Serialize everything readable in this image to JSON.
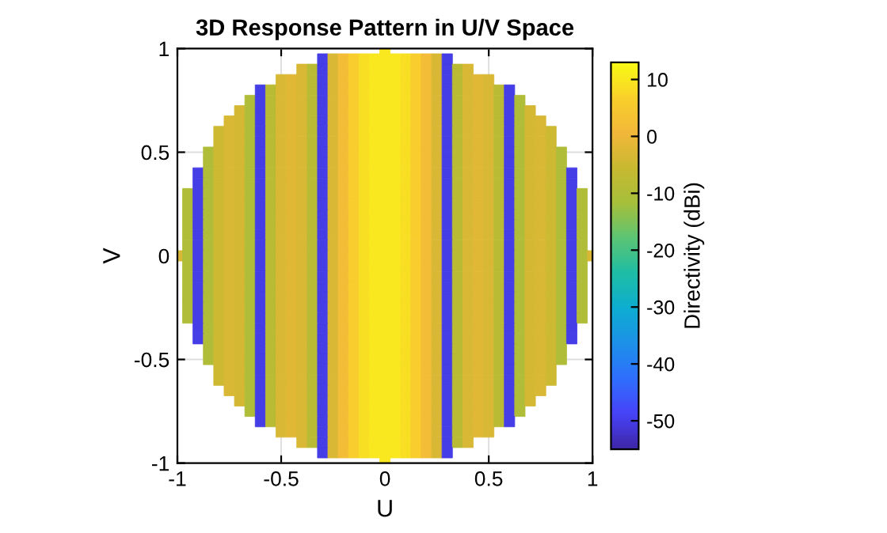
{
  "chart_data": {
    "type": "heatmap",
    "title": "3D Response Pattern in U/V Space",
    "xlabel": "U",
    "ylabel": "V",
    "clabel": "Directivity (dBi)",
    "xlim": [
      -1,
      1
    ],
    "ylim": [
      -1,
      1
    ],
    "xticks": [
      -1,
      -0.5,
      0,
      0.5,
      1
    ],
    "yticks": [
      -1,
      -0.5,
      0,
      0.5,
      1
    ],
    "clim": [
      -55,
      13
    ],
    "cticks": [
      -50,
      -40,
      -30,
      -20,
      -10,
      0,
      10
    ],
    "grid": true,
    "x": [
      -1,
      -0.95,
      -0.9,
      -0.85,
      -0.8,
      -0.75,
      -0.7,
      -0.65,
      -0.6,
      -0.55,
      -0.5,
      -0.45,
      -0.4,
      -0.35,
      -0.3,
      -0.25,
      -0.2,
      -0.15,
      -0.1,
      -0.05,
      0,
      0.05,
      0.1,
      0.15,
      0.2,
      0.25,
      0.3,
      0.35,
      0.4,
      0.45,
      0.5,
      0.55,
      0.6,
      0.65,
      0.7,
      0.75,
      0.8,
      0.85,
      0.9,
      0.95,
      1
    ],
    "y": [
      1,
      0.95,
      0.9,
      0.85,
      0.8,
      0.75,
      0.7,
      0.65,
      0.6,
      0.55,
      0.5,
      0.45,
      0.4,
      0.35,
      0.3,
      0.25,
      0.2,
      0.15,
      0.1,
      0.05,
      0,
      -0.05,
      -0.1,
      -0.15,
      -0.2,
      -0.25,
      -0.3,
      -0.35,
      -0.4,
      -0.45,
      -0.5,
      -0.55,
      -0.6,
      -0.65,
      -0.7,
      -0.75,
      -0.8,
      -0.85,
      -0.9,
      -0.95,
      -1
    ],
    "cells": [
      [
        null,
        null,
        null,
        null,
        null,
        null,
        null,
        null,
        null,
        null,
        null,
        null,
        null,
        null,
        null,
        null,
        null,
        null,
        null,
        null,
        10,
        null,
        null,
        null,
        null,
        null,
        null,
        null,
        null,
        null,
        null,
        null,
        null,
        null,
        null,
        null,
        null,
        null,
        null,
        null,
        null
      ],
      [
        null,
        null,
        null,
        null,
        null,
        null,
        null,
        null,
        null,
        null,
        null,
        null,
        null,
        null,
        -50,
        -3,
        2,
        6,
        9,
        10,
        10,
        10,
        9,
        6,
        2,
        -3,
        -50,
        null,
        null,
        null,
        null,
        null,
        null,
        null,
        null,
        null,
        null,
        null,
        null,
        null,
        null
      ],
      [
        null,
        null,
        null,
        null,
        null,
        null,
        null,
        null,
        null,
        null,
        null,
        null,
        -3,
        -8,
        -50,
        -3,
        2,
        6,
        9,
        10,
        10,
        10,
        9,
        6,
        2,
        -3,
        -50,
        -8,
        -3,
        null,
        null,
        null,
        null,
        null,
        null,
        null,
        null,
        null,
        null,
        null,
        null
      ],
      [
        null,
        null,
        null,
        null,
        null,
        null,
        null,
        null,
        null,
        null,
        -3,
        -2,
        -3,
        -8,
        -50,
        -3,
        2,
        6,
        9,
        10,
        10,
        10,
        9,
        6,
        2,
        -3,
        -50,
        -8,
        -3,
        -2,
        -3,
        null,
        null,
        null,
        null,
        null,
        null,
        null,
        null,
        null,
        null
      ],
      [
        null,
        null,
        null,
        null,
        null,
        null,
        null,
        null,
        -50,
        -8,
        -3,
        -2,
        -3,
        -8,
        -50,
        -3,
        2,
        6,
        9,
        10,
        10,
        10,
        9,
        6,
        2,
        -3,
        -50,
        -8,
        -3,
        -2,
        -3,
        -8,
        -50,
        null,
        null,
        null,
        null,
        null,
        null,
        null,
        null
      ],
      [
        null,
        null,
        null,
        null,
        null,
        null,
        null,
        -10,
        -50,
        -8,
        -3,
        -2,
        -3,
        -8,
        -50,
        -3,
        2,
        6,
        9,
        10,
        10,
        10,
        9,
        6,
        2,
        -3,
        -50,
        -8,
        -3,
        -2,
        -3,
        -8,
        -50,
        -10,
        null,
        null,
        null,
        null,
        null,
        null,
        null
      ],
      [
        null,
        null,
        null,
        null,
        null,
        null,
        -4,
        -10,
        -50,
        -8,
        -3,
        -2,
        -3,
        -8,
        -50,
        -3,
        2,
        6,
        9,
        10,
        10,
        10,
        9,
        6,
        2,
        -3,
        -50,
        -8,
        -3,
        -2,
        -3,
        -8,
        -50,
        -10,
        -4,
        null,
        null,
        null,
        null,
        null,
        null
      ],
      [
        null,
        null,
        null,
        null,
        null,
        -3,
        -4,
        -10,
        -50,
        -8,
        -3,
        -2,
        -3,
        -8,
        -50,
        -3,
        2,
        6,
        9,
        10,
        10,
        10,
        9,
        6,
        2,
        -3,
        -50,
        -8,
        -3,
        -2,
        -3,
        -8,
        -50,
        -10,
        -4,
        -3,
        null,
        null,
        null,
        null,
        null
      ],
      [
        null,
        null,
        null,
        null,
        -5,
        -3,
        -4,
        -10,
        -50,
        -8,
        -3,
        -2,
        -3,
        -8,
        -50,
        -3,
        2,
        6,
        9,
        10,
        10,
        10,
        9,
        6,
        2,
        -3,
        -50,
        -8,
        -3,
        -2,
        -3,
        -8,
        -50,
        -10,
        -4,
        -3,
        -5,
        null,
        null,
        null,
        null
      ],
      [
        null,
        null,
        null,
        null,
        -5,
        -3,
        -4,
        -10,
        -50,
        -8,
        -3,
        -2,
        -3,
        -8,
        -50,
        -3,
        2,
        6,
        9,
        10,
        10,
        10,
        9,
        6,
        2,
        -3,
        -50,
        -8,
        -3,
        -2,
        -3,
        -8,
        -50,
        -10,
        -4,
        -3,
        -5,
        null,
        null,
        null,
        null
      ],
      [
        null,
        null,
        null,
        -10,
        -5,
        -3,
        -4,
        -10,
        -50,
        -8,
        -3,
        -2,
        -3,
        -8,
        -50,
        -3,
        2,
        6,
        9,
        10,
        10,
        10,
        9,
        6,
        2,
        -3,
        -50,
        -8,
        -3,
        -2,
        -3,
        -8,
        -50,
        -10,
        -4,
        -3,
        -5,
        -10,
        null,
        null,
        null
      ],
      [
        null,
        null,
        null,
        -10,
        -5,
        -3,
        -4,
        -10,
        -50,
        -8,
        -3,
        -2,
        -3,
        -8,
        -50,
        -3,
        2,
        6,
        9,
        10,
        10,
        10,
        9,
        6,
        2,
        -3,
        -50,
        -8,
        -3,
        -2,
        -3,
        -8,
        -50,
        -10,
        -4,
        -3,
        -5,
        -10,
        null,
        null,
        null
      ],
      [
        null,
        null,
        -50,
        -10,
        -5,
        -3,
        -4,
        -10,
        -50,
        -8,
        -3,
        -2,
        -3,
        -8,
        -50,
        -3,
        2,
        6,
        9,
        10,
        10,
        10,
        9,
        6,
        2,
        -3,
        -50,
        -8,
        -3,
        -2,
        -3,
        -8,
        -50,
        -10,
        -4,
        -3,
        -5,
        -10,
        -50,
        null,
        null
      ],
      [
        null,
        null,
        -50,
        -10,
        -5,
        -3,
        -4,
        -10,
        -50,
        -8,
        -3,
        -2,
        -3,
        -8,
        -50,
        -3,
        2,
        6,
        9,
        10,
        10,
        10,
        9,
        6,
        2,
        -3,
        -50,
        -8,
        -3,
        -2,
        -3,
        -8,
        -50,
        -10,
        -4,
        -3,
        -5,
        -10,
        -50,
        null,
        null
      ],
      [
        null,
        -10,
        -50,
        -10,
        -5,
        -3,
        -4,
        -10,
        -50,
        -8,
        -3,
        -2,
        -3,
        -8,
        -50,
        -3,
        2,
        6,
        9,
        10,
        10,
        10,
        9,
        6,
        2,
        -3,
        -50,
        -8,
        -3,
        -2,
        -3,
        -8,
        -50,
        -10,
        -4,
        -3,
        -5,
        -10,
        -50,
        -10,
        null
      ],
      [
        null,
        -10,
        -50,
        -10,
        -5,
        -3,
        -4,
        -10,
        -50,
        -8,
        -3,
        -2,
        -3,
        -8,
        -50,
        -3,
        2,
        6,
        9,
        10,
        10,
        10,
        9,
        6,
        2,
        -3,
        -50,
        -8,
        -3,
        -2,
        -3,
        -8,
        -50,
        -10,
        -4,
        -3,
        -5,
        -10,
        -50,
        -10,
        null
      ],
      [
        null,
        -10,
        -50,
        -10,
        -5,
        -3,
        -4,
        -10,
        -50,
        -8,
        -3,
        -2,
        -3,
        -8,
        -50,
        -3,
        2,
        6,
        9,
        10,
        10,
        10,
        9,
        6,
        2,
        -3,
        -50,
        -8,
        -3,
        -2,
        -3,
        -8,
        -50,
        -10,
        -4,
        -3,
        -5,
        -10,
        -50,
        -10,
        null
      ],
      [
        null,
        -10,
        -50,
        -10,
        -5,
        -3,
        -4,
        -10,
        -50,
        -8,
        -3,
        -2,
        -3,
        -8,
        -50,
        -3,
        2,
        6,
        9,
        10,
        10,
        10,
        9,
        6,
        2,
        -3,
        -50,
        -8,
        -3,
        -2,
        -3,
        -8,
        -50,
        -10,
        -4,
        -3,
        -5,
        -10,
        -50,
        -10,
        null
      ],
      [
        null,
        -10,
        -50,
        -10,
        -5,
        -3,
        -4,
        -10,
        -50,
        -8,
        -3,
        -2,
        -3,
        -8,
        -50,
        -3,
        2,
        6,
        9,
        10,
        10,
        10,
        9,
        6,
        2,
        -3,
        -50,
        -8,
        -3,
        -2,
        -3,
        -8,
        -50,
        -10,
        -4,
        -3,
        -5,
        -10,
        -50,
        -10,
        null
      ],
      [
        null,
        -10,
        -50,
        -10,
        -5,
        -3,
        -4,
        -10,
        -50,
        -8,
        -3,
        -2,
        -3,
        -8,
        -50,
        -3,
        2,
        6,
        9,
        10,
        10,
        10,
        9,
        6,
        2,
        -3,
        -50,
        -8,
        -3,
        -2,
        -3,
        -8,
        -50,
        -10,
        -4,
        -3,
        -5,
        -10,
        -50,
        -10,
        null
      ],
      [
        -3,
        -10,
        -50,
        -10,
        -5,
        -3,
        -4,
        -10,
        -50,
        -8,
        -3,
        -2,
        -3,
        -8,
        -50,
        -3,
        2,
        6,
        9,
        10,
        10,
        10,
        9,
        6,
        2,
        -3,
        -50,
        -8,
        -3,
        -2,
        -3,
        -8,
        -50,
        -10,
        -4,
        -3,
        -5,
        -10,
        -50,
        -10,
        -3
      ],
      [
        null,
        -10,
        -50,
        -10,
        -5,
        -3,
        -4,
        -10,
        -50,
        -8,
        -3,
        -2,
        -3,
        -8,
        -50,
        -3,
        2,
        6,
        9,
        10,
        10,
        10,
        9,
        6,
        2,
        -3,
        -50,
        -8,
        -3,
        -2,
        -3,
        -8,
        -50,
        -10,
        -4,
        -3,
        -5,
        -10,
        -50,
        -10,
        null
      ],
      [
        null,
        -10,
        -50,
        -10,
        -5,
        -3,
        -4,
        -10,
        -50,
        -8,
        -3,
        -2,
        -3,
        -8,
        -50,
        -3,
        2,
        6,
        9,
        10,
        10,
        10,
        9,
        6,
        2,
        -3,
        -50,
        -8,
        -3,
        -2,
        -3,
        -8,
        -50,
        -10,
        -4,
        -3,
        -5,
        -10,
        -50,
        -10,
        null
      ],
      [
        null,
        -10,
        -50,
        -10,
        -5,
        -3,
        -4,
        -10,
        -50,
        -8,
        -3,
        -2,
        -3,
        -8,
        -50,
        -3,
        2,
        6,
        9,
        10,
        10,
        10,
        9,
        6,
        2,
        -3,
        -50,
        -8,
        -3,
        -2,
        -3,
        -8,
        -50,
        -10,
        -4,
        -3,
        -5,
        -10,
        -50,
        -10,
        null
      ],
      [
        null,
        -10,
        -50,
        -10,
        -5,
        -3,
        -4,
        -10,
        -50,
        -8,
        -3,
        -2,
        -3,
        -8,
        -50,
        -3,
        2,
        6,
        9,
        10,
        10,
        10,
        9,
        6,
        2,
        -3,
        -50,
        -8,
        -3,
        -2,
        -3,
        -8,
        -50,
        -10,
        -4,
        -3,
        -5,
        -10,
        -50,
        -10,
        null
      ],
      [
        null,
        -10,
        -50,
        -10,
        -5,
        -3,
        -4,
        -10,
        -50,
        -8,
        -3,
        -2,
        -3,
        -8,
        -50,
        -3,
        2,
        6,
        9,
        10,
        10,
        10,
        9,
        6,
        2,
        -3,
        -50,
        -8,
        -3,
        -2,
        -3,
        -8,
        -50,
        -10,
        -4,
        -3,
        -5,
        -10,
        -50,
        -10,
        null
      ],
      [
        null,
        -10,
        -50,
        -10,
        -5,
        -3,
        -4,
        -10,
        -50,
        -8,
        -3,
        -2,
        -3,
        -8,
        -50,
        -3,
        2,
        6,
        9,
        10,
        10,
        10,
        9,
        6,
        2,
        -3,
        -50,
        -8,
        -3,
        -2,
        -3,
        -8,
        -50,
        -10,
        -4,
        -3,
        -5,
        -10,
        -50,
        -10,
        null
      ],
      [
        null,
        null,
        -50,
        -10,
        -5,
        -3,
        -4,
        -10,
        -50,
        -8,
        -3,
        -2,
        -3,
        -8,
        -50,
        -3,
        2,
        6,
        9,
        10,
        10,
        10,
        9,
        6,
        2,
        -3,
        -50,
        -8,
        -3,
        -2,
        -3,
        -8,
        -50,
        -10,
        -4,
        -3,
        -5,
        -10,
        -50,
        null,
        null
      ],
      [
        null,
        null,
        -50,
        -10,
        -5,
        -3,
        -4,
        -10,
        -50,
        -8,
        -3,
        -2,
        -3,
        -8,
        -50,
        -3,
        2,
        6,
        9,
        10,
        10,
        10,
        9,
        6,
        2,
        -3,
        -50,
        -8,
        -3,
        -2,
        -3,
        -8,
        -50,
        -10,
        -4,
        -3,
        -5,
        -10,
        -50,
        null,
        null
      ],
      [
        null,
        null,
        null,
        -10,
        -5,
        -3,
        -4,
        -10,
        -50,
        -8,
        -3,
        -2,
        -3,
        -8,
        -50,
        -3,
        2,
        6,
        9,
        10,
        10,
        10,
        9,
        6,
        2,
        -3,
        -50,
        -8,
        -3,
        -2,
        -3,
        -8,
        -50,
        -10,
        -4,
        -3,
        -5,
        -10,
        null,
        null,
        null
      ],
      [
        null,
        null,
        null,
        -10,
        -5,
        -3,
        -4,
        -10,
        -50,
        -8,
        -3,
        -2,
        -3,
        -8,
        -50,
        -3,
        2,
        6,
        9,
        10,
        10,
        10,
        9,
        6,
        2,
        -3,
        -50,
        -8,
        -3,
        -2,
        -3,
        -8,
        -50,
        -10,
        -4,
        -3,
        -5,
        -10,
        null,
        null,
        null
      ],
      [
        null,
        null,
        null,
        null,
        -5,
        -3,
        -4,
        -10,
        -50,
        -8,
        -3,
        -2,
        -3,
        -8,
        -50,
        -3,
        2,
        6,
        9,
        10,
        10,
        10,
        9,
        6,
        2,
        -3,
        -50,
        -8,
        -3,
        -2,
        -3,
        -8,
        -50,
        -10,
        -4,
        -3,
        -5,
        null,
        null,
        null,
        null
      ],
      [
        null,
        null,
        null,
        null,
        -5,
        -3,
        -4,
        -10,
        -50,
        -8,
        -3,
        -2,
        -3,
        -8,
        -50,
        -3,
        2,
        6,
        9,
        10,
        10,
        10,
        9,
        6,
        2,
        -3,
        -50,
        -8,
        -3,
        -2,
        -3,
        -8,
        -50,
        -10,
        -4,
        -3,
        -5,
        null,
        null,
        null,
        null
      ],
      [
        null,
        null,
        null,
        null,
        null,
        -3,
        -4,
        -10,
        -50,
        -8,
        -3,
        -2,
        -3,
        -8,
        -50,
        -3,
        2,
        6,
        9,
        10,
        10,
        10,
        9,
        6,
        2,
        -3,
        -50,
        -8,
        -3,
        -2,
        -3,
        -8,
        -50,
        -10,
        -4,
        -3,
        null,
        null,
        null,
        null,
        null
      ],
      [
        null,
        null,
        null,
        null,
        null,
        null,
        -4,
        -10,
        -50,
        -8,
        -3,
        -2,
        -3,
        -8,
        -50,
        -3,
        2,
        6,
        9,
        10,
        10,
        10,
        9,
        6,
        2,
        -3,
        -50,
        -8,
        -3,
        -2,
        -3,
        -8,
        -50,
        -10,
        -4,
        null,
        null,
        null,
        null,
        null,
        null
      ],
      [
        null,
        null,
        null,
        null,
        null,
        null,
        null,
        -10,
        -50,
        -8,
        -3,
        -2,
        -3,
        -8,
        -50,
        -3,
        2,
        6,
        9,
        10,
        10,
        10,
        9,
        6,
        2,
        -3,
        -50,
        -8,
        -3,
        -2,
        -3,
        -8,
        -50,
        -10,
        null,
        null,
        null,
        null,
        null,
        null,
        null
      ],
      [
        null,
        null,
        null,
        null,
        null,
        null,
        null,
        null,
        -50,
        -8,
        -3,
        -2,
        -3,
        -8,
        -50,
        -3,
        2,
        6,
        9,
        10,
        10,
        10,
        9,
        6,
        2,
        -3,
        -50,
        -8,
        -3,
        -2,
        -3,
        -8,
        -50,
        null,
        null,
        null,
        null,
        null,
        null,
        null,
        null
      ],
      [
        null,
        null,
        null,
        null,
        null,
        null,
        null,
        null,
        null,
        null,
        -3,
        -2,
        -3,
        -8,
        -50,
        -3,
        2,
        6,
        9,
        10,
        10,
        10,
        9,
        6,
        2,
        -3,
        -50,
        -8,
        -3,
        -2,
        -3,
        null,
        null,
        null,
        null,
        null,
        null,
        null,
        null,
        null,
        null
      ],
      [
        null,
        null,
        null,
        null,
        null,
        null,
        null,
        null,
        null,
        null,
        null,
        null,
        -3,
        -8,
        -50,
        -3,
        2,
        6,
        9,
        10,
        10,
        10,
        9,
        6,
        2,
        -3,
        -50,
        -8,
        -3,
        null,
        null,
        null,
        null,
        null,
        null,
        null,
        null,
        null,
        null,
        null,
        null
      ],
      [
        null,
        null,
        null,
        null,
        null,
        null,
        null,
        null,
        null,
        null,
        null,
        null,
        null,
        null,
        -50,
        -3,
        2,
        6,
        9,
        10,
        10,
        10,
        9,
        6,
        2,
        -3,
        -50,
        null,
        null,
        null,
        null,
        null,
        null,
        null,
        null,
        null,
        null,
        null,
        null,
        null,
        null
      ],
      [
        null,
        null,
        null,
        null,
        null,
        null,
        null,
        null,
        null,
        null,
        null,
        null,
        null,
        null,
        null,
        null,
        null,
        null,
        null,
        null,
        10,
        null,
        null,
        null,
        null,
        null,
        null,
        null,
        null,
        null,
        null,
        null,
        null,
        null,
        null,
        null,
        null,
        null,
        null,
        null,
        null
      ]
    ]
  }
}
